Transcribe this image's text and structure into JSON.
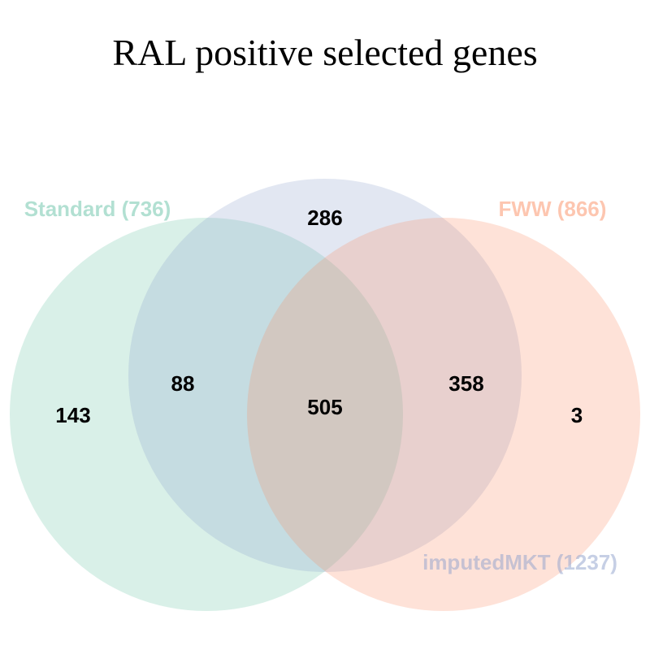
{
  "title": "RAL positive selected genes",
  "sets": [
    {
      "key": "standard",
      "label": "Standard (736)",
      "color": "#66c2a5"
    },
    {
      "key": "imputed",
      "label": "imputedMKT (1237)",
      "color": "#8da0cb"
    },
    {
      "key": "fww",
      "label": "FWW (866)",
      "color": "#fc8d62"
    }
  ],
  "regions": {
    "standard_only": "143",
    "imputed_only": "286",
    "fww_only": "3",
    "standard_imputed": "88",
    "imputed_fww": "358",
    "all_three": "505"
  }
}
